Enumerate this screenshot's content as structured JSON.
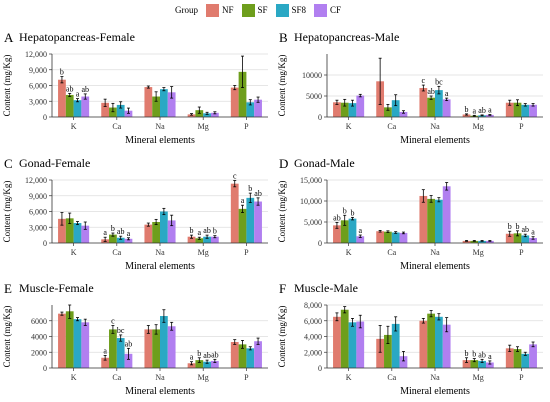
{
  "legend": {
    "title": "Group",
    "items": [
      {
        "label": "NF",
        "color": "#E07B6E"
      },
      {
        "label": "SF",
        "color": "#6E9E1C"
      },
      {
        "label": "SF8",
        "color": "#2AA8C4"
      },
      {
        "label": "CF",
        "color": "#B17FF0"
      }
    ]
  },
  "chart_data": [
    {
      "type": "bar",
      "panel_label": "A",
      "title": "Hepatopancreas-Female",
      "xlabel": "Mineral elements",
      "ylabel": "Content (mg/Kg)",
      "categories": [
        "K",
        "Ca",
        "Na",
        "Mg",
        "P"
      ],
      "ylim": [
        0,
        12000
      ],
      "yticks": [
        0,
        3000,
        6000,
        9000,
        12000
      ],
      "ytick_labels": [
        "0",
        "3,000",
        "6,000",
        "9,000",
        "12,000"
      ],
      "series": [
        {
          "name": "NF",
          "values": [
            7100,
            2700,
            5700,
            500,
            5600
          ],
          "errors": [
            600,
            700,
            200,
            150,
            400
          ]
        },
        {
          "name": "SF",
          "values": [
            4200,
            1800,
            3900,
            1300,
            8600
          ],
          "errors": [
            300,
            800,
            900,
            600,
            3000
          ]
        },
        {
          "name": "SF8",
          "values": [
            3200,
            2300,
            5300,
            700,
            2800
          ],
          "errors": [
            300,
            600,
            300,
            200,
            500
          ]
        },
        {
          "name": "CF",
          "values": [
            3900,
            1200,
            4700,
            800,
            3300
          ],
          "errors": [
            500,
            500,
            1100,
            200,
            500
          ]
        }
      ],
      "annotations": [
        {
          "category": "K",
          "series": "NF",
          "text": "b"
        },
        {
          "category": "K",
          "series": "SF",
          "text": "ab"
        },
        {
          "category": "K",
          "series": "SF8",
          "text": "a"
        },
        {
          "category": "K",
          "series": "CF",
          "text": "ab"
        }
      ]
    },
    {
      "type": "bar",
      "panel_label": "B",
      "title": "Hepatopancreas-Male",
      "xlabel": "Mineral elements",
      "ylabel": "Content (mg/Kg)",
      "categories": [
        "K",
        "Ca",
        "Na",
        "Mg",
        "P"
      ],
      "ylim": [
        0,
        15000
      ],
      "yticks": [
        0,
        5000,
        10000
      ],
      "ytick_labels": [
        "0",
        "5000",
        "10000"
      ],
      "series": [
        {
          "name": "NF",
          "values": [
            3500,
            8500,
            6900,
            600,
            3400
          ],
          "errors": [
            500,
            5500,
            700,
            150,
            600
          ]
        },
        {
          "name": "SF",
          "values": [
            3400,
            2300,
            4600,
            300,
            3400
          ],
          "errors": [
            800,
            700,
            400,
            100,
            700
          ]
        },
        {
          "name": "SF8",
          "values": [
            3300,
            4000,
            6400,
            400,
            2900
          ],
          "errors": [
            700,
            1300,
            900,
            100,
            300
          ]
        },
        {
          "name": "CF",
          "values": [
            5100,
            1200,
            4200,
            500,
            2900
          ],
          "errors": [
            300,
            300,
            300,
            100,
            300
          ]
        }
      ],
      "annotations": [
        {
          "category": "Na",
          "series": "NF",
          "text": "c"
        },
        {
          "category": "Na",
          "series": "SF",
          "text": "ab"
        },
        {
          "category": "Na",
          "series": "SF8",
          "text": "bc"
        },
        {
          "category": "Na",
          "series": "CF",
          "text": "a"
        },
        {
          "category": "Mg",
          "series": "NF",
          "text": "b"
        },
        {
          "category": "Mg",
          "series": "SF",
          "text": "a"
        },
        {
          "category": "Mg",
          "series": "SF8",
          "text": "ab"
        },
        {
          "category": "Mg",
          "series": "CF",
          "text": "a"
        }
      ]
    },
    {
      "type": "bar",
      "panel_label": "C",
      "title": "Gonad-Female",
      "xlabel": "Mineral elements",
      "ylabel": "Content (mg/Kg)",
      "categories": [
        "K",
        "Ca",
        "Na",
        "Mg",
        "P"
      ],
      "ylim": [
        0,
        12000
      ],
      "yticks": [
        0,
        3000,
        6000,
        9000,
        12000
      ],
      "ytick_labels": [
        "0",
        "3,000",
        "6,000",
        "9,000",
        "12,000"
      ],
      "series": [
        {
          "name": "NF",
          "values": [
            4600,
            700,
            3500,
            1200,
            11300
          ],
          "errors": [
            1200,
            400,
            300,
            300,
            600
          ]
        },
        {
          "name": "SF",
          "values": [
            4700,
            1600,
            4000,
            900,
            6500
          ],
          "errors": [
            1000,
            300,
            500,
            200,
            700
          ]
        },
        {
          "name": "SF8",
          "values": [
            3800,
            1000,
            6000,
            1200,
            8600
          ],
          "errors": [
            300,
            300,
            600,
            300,
            900
          ]
        },
        {
          "name": "CF",
          "values": [
            3300,
            800,
            4300,
            1200,
            7900
          ],
          "errors": [
            700,
            200,
            1000,
            200,
            700
          ]
        }
      ],
      "annotations": [
        {
          "category": "Ca",
          "series": "NF",
          "text": "a"
        },
        {
          "category": "Ca",
          "series": "SF",
          "text": "b"
        },
        {
          "category": "Ca",
          "series": "SF8",
          "text": "ab"
        },
        {
          "category": "Ca",
          "series": "CF",
          "text": "a"
        },
        {
          "category": "Mg",
          "series": "NF",
          "text": "b"
        },
        {
          "category": "Mg",
          "series": "SF",
          "text": "a"
        },
        {
          "category": "Mg",
          "series": "SF8",
          "text": "ab"
        },
        {
          "category": "Mg",
          "series": "CF",
          "text": "b"
        },
        {
          "category": "P",
          "series": "NF",
          "text": "c"
        },
        {
          "category": "P",
          "series": "SF",
          "text": "a"
        },
        {
          "category": "P",
          "series": "SF8",
          "text": "b"
        },
        {
          "category": "P",
          "series": "CF",
          "text": "ab"
        }
      ]
    },
    {
      "type": "bar",
      "panel_label": "D",
      "title": "Gonad-Male",
      "xlabel": "Mineral elements",
      "ylabel": "Content (mg/Kg)",
      "categories": [
        "K",
        "Ca",
        "Na",
        "Mg",
        "P"
      ],
      "ylim": [
        0,
        15000
      ],
      "yticks": [
        0,
        5000,
        10000,
        15000
      ],
      "ytick_labels": [
        "0",
        "5,000",
        "10,000",
        "15,000"
      ],
      "series": [
        {
          "name": "NF",
          "values": [
            4200,
            2800,
            11200,
            500,
            2200
          ],
          "errors": [
            700,
            200,
            1500,
            100,
            600
          ]
        },
        {
          "name": "SF",
          "values": [
            5400,
            2700,
            10500,
            500,
            2300
          ],
          "errors": [
            1200,
            200,
            800,
            100,
            600
          ]
        },
        {
          "name": "SF8",
          "values": [
            5800,
            2500,
            10300,
            500,
            1800
          ],
          "errors": [
            300,
            200,
            500,
            100,
            300
          ]
        },
        {
          "name": "CF",
          "values": [
            1600,
            2400,
            13500,
            500,
            1200
          ],
          "errors": [
            300,
            200,
            900,
            100,
            300
          ]
        }
      ],
      "annotations": [
        {
          "category": "K",
          "series": "NF",
          "text": "ab"
        },
        {
          "category": "K",
          "series": "SF",
          "text": "b"
        },
        {
          "category": "K",
          "series": "SF8",
          "text": "b"
        },
        {
          "category": "K",
          "series": "CF",
          "text": "a"
        },
        {
          "category": "P",
          "series": "NF",
          "text": "b"
        },
        {
          "category": "P",
          "series": "SF",
          "text": "b"
        },
        {
          "category": "P",
          "series": "SF8",
          "text": "ab"
        },
        {
          "category": "P",
          "series": "CF",
          "text": "a"
        }
      ]
    },
    {
      "type": "bar",
      "panel_label": "E",
      "title": "Muscle-Female",
      "xlabel": "Mineral elements",
      "ylabel": "Content (mg/Kg)",
      "categories": [
        "K",
        "Ca",
        "Na",
        "Mg",
        "P"
      ],
      "ylim": [
        0,
        8000
      ],
      "yticks": [
        0,
        2000,
        4000,
        6000
      ],
      "ytick_labels": [
        "0",
        "2000",
        "4000",
        "6000"
      ],
      "series": [
        {
          "name": "NF",
          "values": [
            6900,
            1300,
            4900,
            600,
            3300
          ],
          "errors": [
            200,
            300,
            500,
            200,
            300
          ]
        },
        {
          "name": "SF",
          "values": [
            7200,
            4900,
            4900,
            1000,
            3000
          ],
          "errors": [
            900,
            500,
            600,
            300,
            500
          ]
        },
        {
          "name": "SF8",
          "values": [
            6200,
            3800,
            6600,
            800,
            2500
          ],
          "errors": [
            200,
            400,
            800,
            200,
            200
          ]
        },
        {
          "name": "CF",
          "values": [
            5800,
            1800,
            5300,
            900,
            3400
          ],
          "errors": [
            400,
            700,
            500,
            200,
            400
          ]
        }
      ],
      "annotations": [
        {
          "category": "Ca",
          "series": "NF",
          "text": "a"
        },
        {
          "category": "Ca",
          "series": "SF",
          "text": "c"
        },
        {
          "category": "Ca",
          "series": "SF8",
          "text": "bc"
        },
        {
          "category": "Ca",
          "series": "CF",
          "text": "ab"
        },
        {
          "category": "Mg",
          "series": "NF",
          "text": "a"
        },
        {
          "category": "Mg",
          "series": "SF",
          "text": "b"
        },
        {
          "category": "Mg",
          "series": "SF8",
          "text": "ab"
        },
        {
          "category": "Mg",
          "series": "CF",
          "text": "ab"
        }
      ]
    },
    {
      "type": "bar",
      "panel_label": "F",
      "title": "Muscle-Male",
      "xlabel": "Mineral elements",
      "ylabel": "Content (mg/Kg)",
      "categories": [
        "K",
        "Ca",
        "Na",
        "Mg",
        "P"
      ],
      "ylim": [
        0,
        8000
      ],
      "yticks": [
        0,
        2000,
        4000,
        6000,
        8000
      ],
      "ytick_labels": [
        "0",
        "2,000",
        "4,000",
        "6,000",
        "8,000"
      ],
      "series": [
        {
          "name": "NF",
          "values": [
            6500,
            3700,
            6000,
            1000,
            2500
          ],
          "errors": [
            500,
            1700,
            300,
            300,
            400
          ]
        },
        {
          "name": "SF",
          "values": [
            7400,
            4200,
            6900,
            1000,
            2400
          ],
          "errors": [
            400,
            1100,
            400,
            200,
            300
          ]
        },
        {
          "name": "SF8",
          "values": [
            5800,
            5600,
            6500,
            900,
            1800
          ],
          "errors": [
            500,
            900,
            400,
            200,
            200
          ]
        },
        {
          "name": "CF",
          "values": [
            5900,
            1500,
            5500,
            700,
            3000
          ],
          "errors": [
            800,
            600,
            900,
            200,
            300
          ]
        }
      ],
      "annotations": [
        {
          "category": "Mg",
          "series": "NF",
          "text": "b"
        },
        {
          "category": "Mg",
          "series": "SF",
          "text": "b"
        },
        {
          "category": "Mg",
          "series": "SF8",
          "text": "ab"
        },
        {
          "category": "Mg",
          "series": "CF",
          "text": "a"
        }
      ]
    }
  ]
}
